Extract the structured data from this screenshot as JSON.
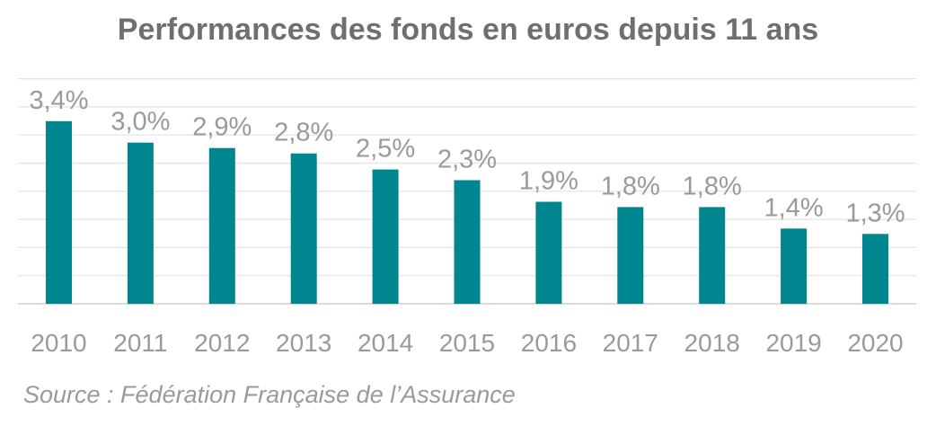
{
  "chart_data": {
    "type": "bar",
    "title": "Performances des fonds en euros depuis 11 ans",
    "categories": [
      "2010",
      "2011",
      "2012",
      "2013",
      "2014",
      "2015",
      "2016",
      "2017",
      "2018",
      "2019",
      "2020"
    ],
    "values": [
      3.4,
      3.0,
      2.9,
      2.8,
      2.5,
      2.3,
      1.9,
      1.8,
      1.8,
      1.4,
      1.3
    ],
    "data_labels": [
      "3,4%",
      "3,0%",
      "2,9%",
      "2,8%",
      "2,5%",
      "2,3%",
      "1,9%",
      "1,8%",
      "1,8%",
      "1,4%",
      "1,3%"
    ],
    "ylim": [
      0,
      4.2
    ],
    "grid": true,
    "bar_color": "#00868f",
    "source": "Source : Fédération Française de l’Assurance"
  }
}
